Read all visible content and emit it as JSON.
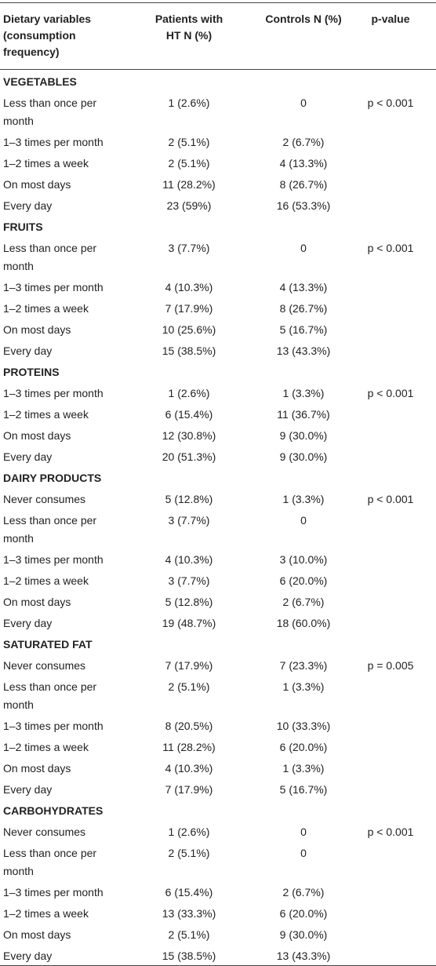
{
  "table": {
    "header": [
      "Dietary variables (consumption frequency)",
      "Patients with HT N (%)",
      "Controls N (%)",
      "p-value"
    ],
    "sections": [
      {
        "name": "VEGETABLES",
        "rows": [
          [
            "Less than once per month",
            "1 (2.6%)",
            "0",
            "p < 0.001"
          ],
          [
            "1–3 times per month",
            "2 (5.1%)",
            "2 (6.7%)"
          ],
          [
            "1–2 times a week",
            "2 (5.1%)",
            "4 (13.3%)"
          ],
          [
            "On most days",
            "11 (28.2%)",
            "8 (26.7%)"
          ],
          [
            "Every day",
            "23 (59%)",
            "16 (53.3%)"
          ]
        ]
      },
      {
        "name": "FRUITS",
        "rows": [
          [
            "Less than once per month",
            "3 (7.7%)",
            "0",
            "p < 0.001"
          ],
          [
            "1–3 times per month",
            "4 (10.3%)",
            "4 (13.3%)"
          ],
          [
            "1–2 times a week",
            "7 (17.9%)",
            "8 (26.7%)"
          ],
          [
            "On most days",
            "10 (25.6%)",
            "5 (16.7%)"
          ],
          [
            "Every day",
            "15 (38.5%)",
            "13 (43.3%)"
          ]
        ]
      },
      {
        "name": "PROTEINS",
        "rows": [
          [
            "1–3 times per month",
            "1 (2.6%)",
            "1 (3.3%)",
            "p < 0.001"
          ],
          [
            "1–2 times a week",
            "6 (15.4%)",
            "11 (36.7%)"
          ],
          [
            "On most days",
            "12 (30.8%)",
            "9 (30.0%)"
          ],
          [
            "Every day",
            "20 (51.3%)",
            "9 (30.0%)"
          ]
        ]
      },
      {
        "name": "DAIRY PRODUCTS",
        "rows": [
          [
            "Never consumes",
            "5 (12.8%)",
            "1 (3.3%)",
            "p < 0.001"
          ],
          [
            "Less than once per month",
            "3 (7.7%)",
            "0"
          ],
          [
            "1–3 times per month",
            "4 (10.3%)",
            "3 (10.0%)"
          ],
          [
            "1–2 times a week",
            "3 (7.7%)",
            "6 (20.0%)"
          ],
          [
            "On most days",
            "5 (12.8%)",
            "2 (6.7%)"
          ],
          [
            "Every day",
            "19 (48.7%)",
            "18 (60.0%)"
          ]
        ]
      },
      {
        "name": "SATURATED FAT",
        "rows": [
          [
            "Never consumes",
            "7 (17.9%)",
            "7 (23.3%)",
            "p = 0.005"
          ],
          [
            "Less than once per month",
            "2 (5.1%)",
            "1 (3.3%)"
          ],
          [
            "1–3 times per month",
            "8 (20.5%)",
            "10 (33.3%)"
          ],
          [
            "1–2 times a week",
            "11 (28.2%)",
            "6 (20.0%)"
          ],
          [
            "On most days",
            "4 (10.3%)",
            "1 (3.3%)"
          ],
          [
            "Every day",
            "7 (17.9%)",
            "5 (16.7%)"
          ]
        ]
      },
      {
        "name": "CARBOHYDRATES",
        "rows": [
          [
            "Never consumes",
            "1 (2.6%)",
            "0",
            "p < 0.001"
          ],
          [
            "Less than once per month",
            "2 (5.1%)",
            "0"
          ],
          [
            "1–3 times per month",
            "6 (15.4%)",
            "2 (6.7%)"
          ],
          [
            "1–2 times a week",
            "13 (33.3%)",
            "6 (20.0%)"
          ],
          [
            "On most days",
            "2 (5.1%)",
            "9 (30.0%)"
          ],
          [
            "Every day",
            "15 (38.5%)",
            "13 (43.3%)"
          ]
        ]
      }
    ]
  }
}
